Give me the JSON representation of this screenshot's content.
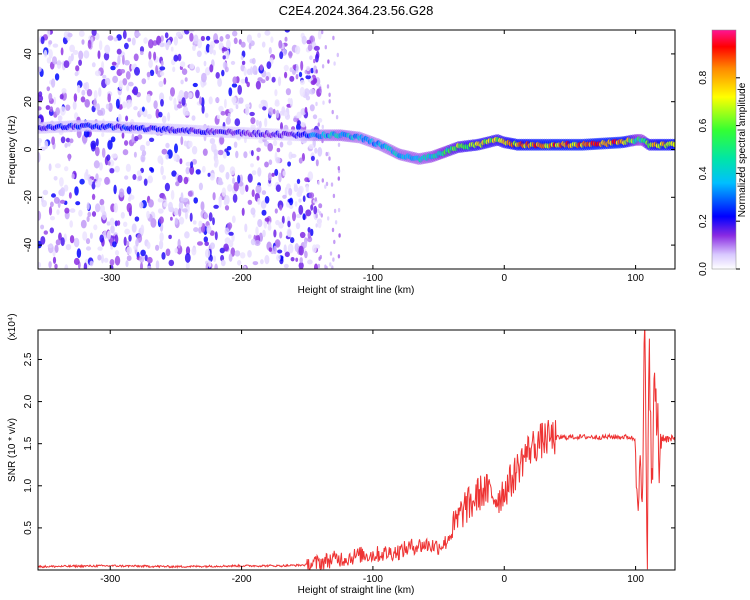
{
  "title": "C2E4.2024.364.23.56.G28",
  "colors": {
    "snr_line": "#ee3333",
    "axis": "#000000",
    "background": "#ffffff",
    "colormap": [
      "#ffffff",
      "#e6d9ff",
      "#b27cff",
      "#8a2be2",
      "#4b00ff",
      "#0000ff",
      "#00bfff",
      "#00e5a8",
      "#33ff33",
      "#ffff00",
      "#ff9900",
      "#ff0000",
      "#ff1493"
    ]
  },
  "chart_data": [
    {
      "type": "heatmap",
      "title": "C2E4.2024.364.23.56.G28",
      "xlabel": "Height of straight line (km)",
      "ylabel": "Frequency (Hz)",
      "xlim": [
        -355,
        130
      ],
      "ylim": [
        -50,
        50
      ],
      "x_ticks": [
        -300,
        -200,
        -100,
        0,
        100
      ],
      "y_ticks": [
        -40,
        -20,
        0,
        20,
        40
      ],
      "grid": false,
      "colorbar": {
        "label": "Normalized spectral amplitude",
        "range": [
          0.0,
          1.0
        ],
        "ticks": [
          "0.0",
          "0.2",
          "0.4",
          "0.6",
          "0.8"
        ]
      },
      "noise_region": {
        "x": [
          -355,
          -140
        ],
        "frequency": [
          -50,
          50
        ],
        "amplitude": 0.15
      },
      "signal_track": {
        "x": [
          -355,
          -320,
          -280,
          -240,
          -200,
          -160,
          -150,
          -140,
          -125,
          -110,
          -95,
          -80,
          -65,
          -55,
          -45,
          -35,
          -20,
          -5,
          0,
          10,
          30,
          60,
          90,
          100,
          105,
          110,
          120,
          130
        ],
        "frequency": [
          9,
          10,
          9,
          8,
          7,
          6,
          6,
          6,
          6,
          5,
          2,
          -2,
          -4,
          -3,
          -1,
          1,
          2,
          4,
          3,
          2,
          2,
          2,
          3,
          4,
          4,
          2,
          2,
          2
        ],
        "amplitude": [
          0.25,
          0.25,
          0.25,
          0.22,
          0.2,
          0.2,
          0.3,
          0.4,
          0.45,
          0.4,
          0.4,
          0.45,
          0.45,
          0.5,
          0.6,
          0.7,
          0.8,
          0.75,
          0.8,
          0.9,
          0.95,
          0.95,
          0.95,
          0.6,
          0.5,
          0.8,
          0.9,
          0.9
        ]
      }
    },
    {
      "type": "line",
      "title": "",
      "xlabel": "Height of straight line (km)",
      "ylabel": "SNR (10 * v/v)",
      "y_multiplier": "(x10⁴)",
      "xlim": [
        -355,
        130
      ],
      "ylim": [
        0,
        2.85
      ],
      "x_ticks": [
        -300,
        -200,
        -100,
        0,
        100
      ],
      "y_ticks": [
        0.5,
        1.0,
        1.5,
        2.0,
        2.5
      ],
      "y_tick_labels": [
        "0.5",
        "1.0",
        "1.5",
        "2.0",
        "2.5"
      ],
      "grid": false,
      "series": [
        {
          "color": "#ee3333",
          "x": [
            -355,
            -300,
            -250,
            -200,
            -170,
            -150,
            -140,
            -130,
            -120,
            -110,
            -100,
            -90,
            -80,
            -70,
            -60,
            -50,
            -45,
            -40,
            -35,
            -30,
            -25,
            -20,
            -15,
            -10,
            -5,
            0,
            5,
            10,
            15,
            20,
            25,
            30,
            35,
            40,
            50,
            60,
            70,
            80,
            90,
            95,
            100,
            103,
            105,
            107,
            108,
            109,
            110,
            112,
            115,
            118,
            120,
            125,
            130
          ],
          "y": [
            0.04,
            0.05,
            0.04,
            0.05,
            0.05,
            0.06,
            0.09,
            0.13,
            0.14,
            0.18,
            0.18,
            0.2,
            0.22,
            0.28,
            0.3,
            0.28,
            0.32,
            0.45,
            0.6,
            0.75,
            0.78,
            0.9,
            0.95,
            0.9,
            0.85,
            0.95,
            1.05,
            1.2,
            1.35,
            1.45,
            1.5,
            1.55,
            1.57,
            1.57,
            1.58,
            1.58,
            1.58,
            1.58,
            1.58,
            1.58,
            1.55,
            1.0,
            0.7,
            2.7,
            1.2,
            0.3,
            2.8,
            1.0,
            2.2,
            1.4,
            1.58,
            1.55,
            1.55
          ]
        }
      ]
    }
  ]
}
